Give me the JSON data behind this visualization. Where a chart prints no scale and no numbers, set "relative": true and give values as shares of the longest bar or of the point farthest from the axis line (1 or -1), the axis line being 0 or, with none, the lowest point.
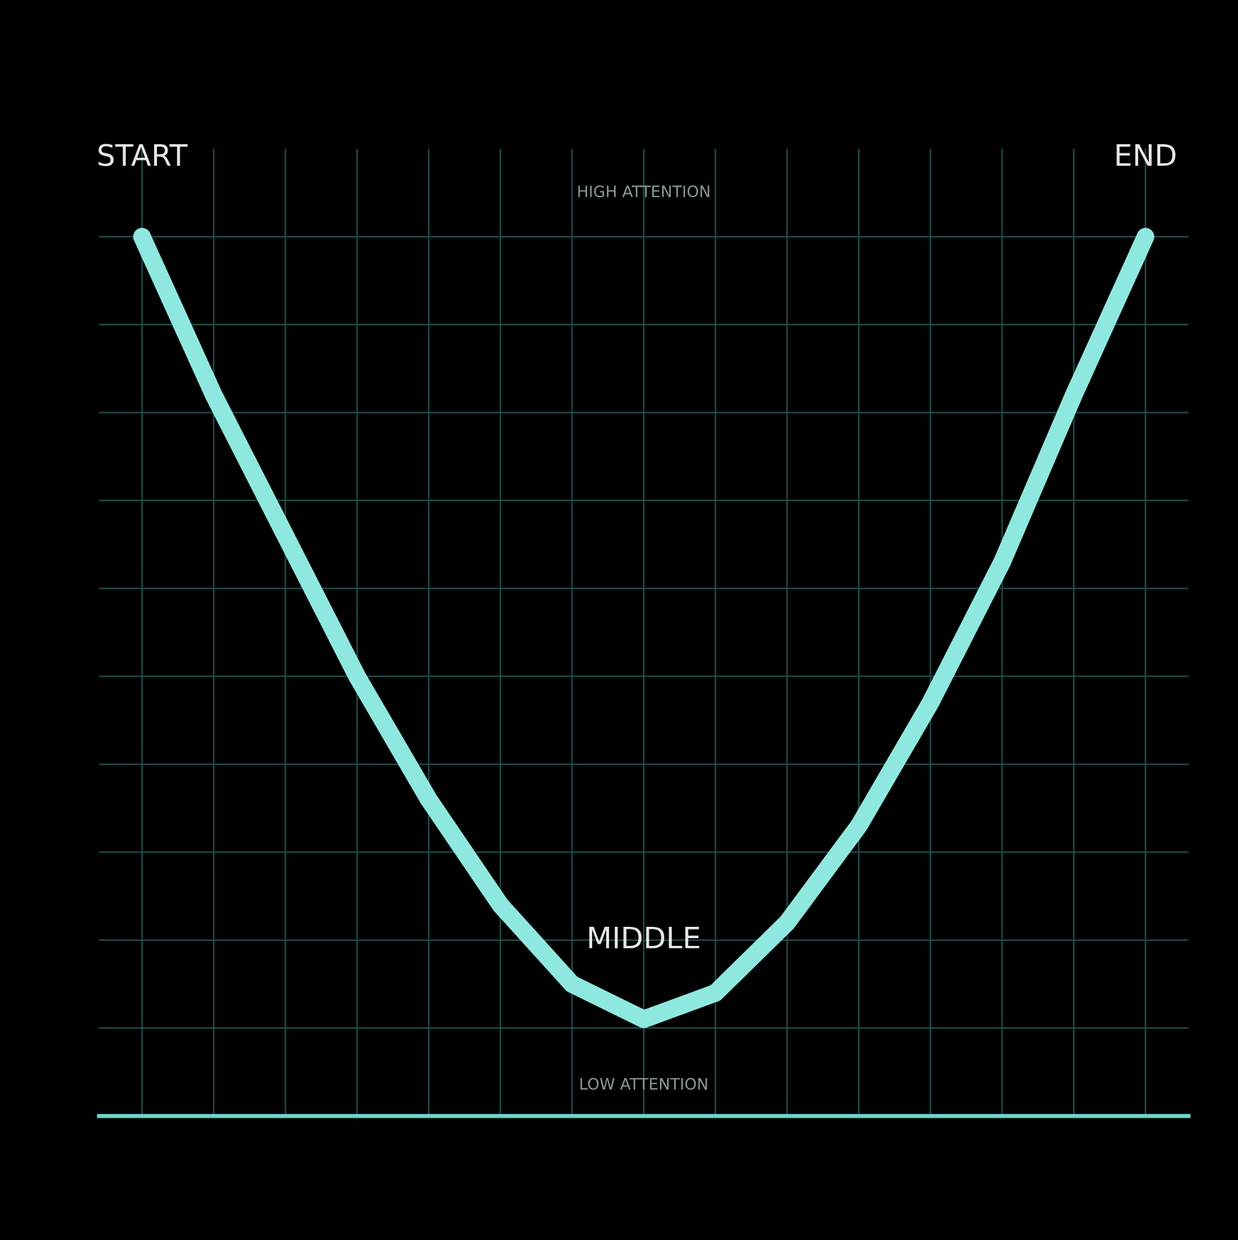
{
  "chart_data": {
    "type": "line",
    "relative": true,
    "categories": [
      null,
      null,
      null,
      null,
      null,
      null,
      null,
      null,
      null,
      null,
      null,
      null,
      null,
      null,
      null
    ],
    "series": [
      {
        "color": "#8fe8df",
        "values": [
          1,
          0.82,
          0.66,
          0.5,
          0.36,
          0.24,
          0.15,
          0.11,
          0.14,
          0.22,
          0.33,
          0.47,
          0.63,
          0.82,
          1
        ]
      }
    ],
    "annotations": [
      "START",
      "MIDDLE",
      "END",
      "HIGH ATTENTION",
      "LOW ATTENTION"
    ],
    "grid": true,
    "line_style": "solid"
  }
}
